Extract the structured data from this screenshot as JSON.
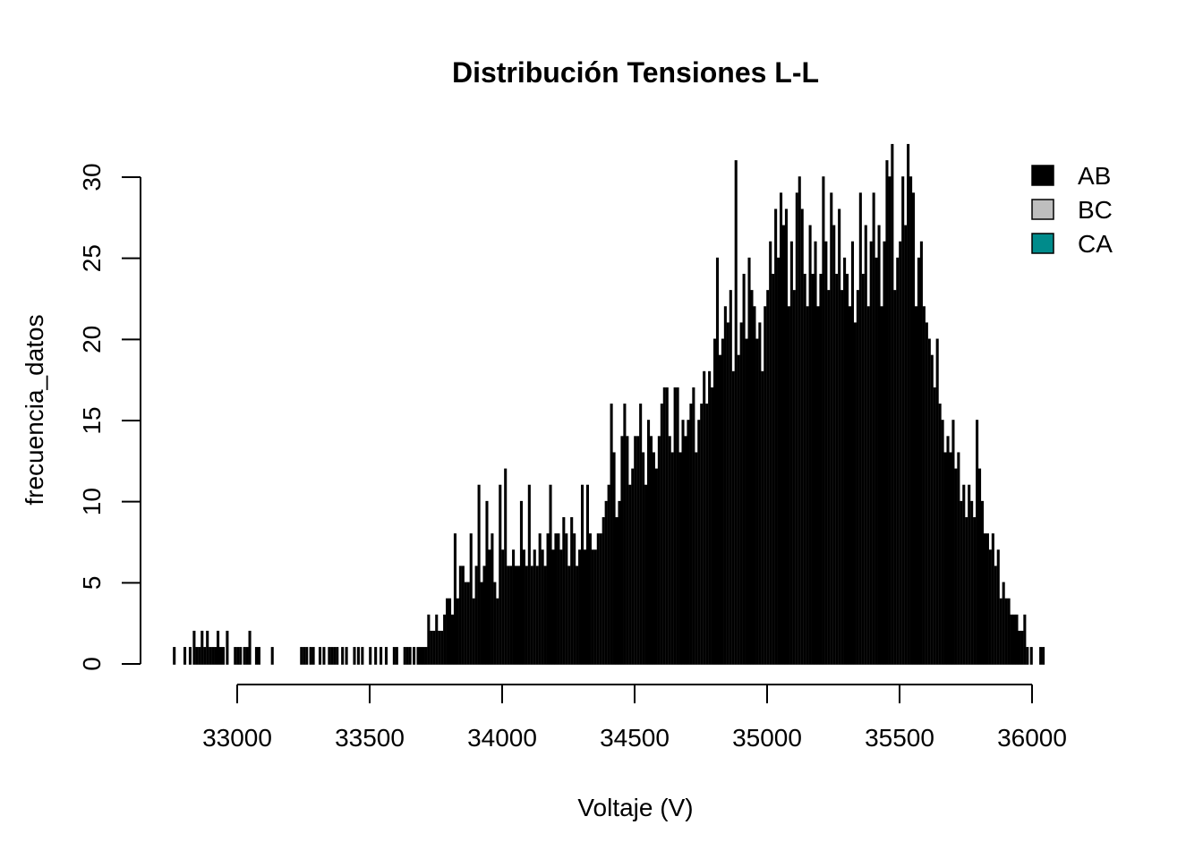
{
  "chart_data": {
    "type": "bar",
    "title": "Distribución Tensiones L-L",
    "xlabel": "Voltaje (V)",
    "ylabel": "frecuencia_datos",
    "xlim": [
      32750,
      36050
    ],
    "ylim": [
      0,
      32
    ],
    "x_ticks": [
      33000,
      33500,
      34000,
      34500,
      35000,
      35500,
      36000
    ],
    "x_tick_labels": [
      "33000",
      "33500",
      "34000",
      "34500",
      "35000",
      "35500",
      "36000"
    ],
    "y_ticks": [
      0,
      5,
      10,
      15,
      20,
      25,
      30
    ],
    "y_tick_labels": [
      "0",
      "5",
      "10",
      "15",
      "20",
      "25",
      "30"
    ],
    "grid": false,
    "legend_position": "top-right",
    "bar_width": 5,
    "series": [
      {
        "name": "AB",
        "color": "#000000",
        "points": [
          [
            32760,
            1
          ],
          [
            32800,
            1
          ],
          [
            32820,
            1
          ],
          [
            32835,
            2
          ],
          [
            32845,
            1
          ],
          [
            32855,
            1
          ],
          [
            32865,
            2
          ],
          [
            32875,
            1
          ],
          [
            32885,
            2
          ],
          [
            32895,
            1
          ],
          [
            32905,
            1
          ],
          [
            32915,
            1
          ],
          [
            32925,
            2
          ],
          [
            32935,
            1
          ],
          [
            32945,
            1
          ],
          [
            32960,
            2
          ],
          [
            32990,
            1
          ],
          [
            33000,
            1
          ],
          [
            33010,
            1
          ],
          [
            33025,
            1
          ],
          [
            33035,
            1
          ],
          [
            33045,
            2
          ],
          [
            33070,
            1
          ],
          [
            33080,
            1
          ],
          [
            33130,
            1
          ],
          [
            33240,
            1
          ],
          [
            33250,
            1
          ],
          [
            33260,
            1
          ],
          [
            33275,
            1
          ],
          [
            33285,
            1
          ],
          [
            33310,
            1
          ],
          [
            33325,
            1
          ],
          [
            33345,
            1
          ],
          [
            33355,
            1
          ],
          [
            33365,
            1
          ],
          [
            33375,
            1
          ],
          [
            33395,
            1
          ],
          [
            33410,
            1
          ],
          [
            33440,
            1
          ],
          [
            33455,
            1
          ],
          [
            33470,
            1
          ],
          [
            33500,
            1
          ],
          [
            33520,
            1
          ],
          [
            33540,
            1
          ],
          [
            33560,
            1
          ],
          [
            33590,
            1
          ],
          [
            33600,
            1
          ],
          [
            33630,
            1
          ],
          [
            33640,
            1
          ],
          [
            33650,
            1
          ],
          [
            33665,
            1
          ],
          [
            33680,
            1
          ],
          [
            33690,
            1
          ],
          [
            33700,
            1
          ],
          [
            33710,
            1
          ],
          [
            33720,
            3
          ],
          [
            33730,
            2
          ],
          [
            33740,
            2
          ],
          [
            33750,
            3
          ],
          [
            33760,
            2
          ],
          [
            33770,
            2
          ],
          [
            33780,
            3
          ],
          [
            33790,
            4
          ],
          [
            33800,
            4
          ],
          [
            33810,
            3
          ],
          [
            33820,
            8
          ],
          [
            33830,
            4
          ],
          [
            33840,
            6
          ],
          [
            33850,
            6
          ],
          [
            33860,
            5
          ],
          [
            33870,
            5
          ],
          [
            33880,
            8
          ],
          [
            33890,
            4
          ],
          [
            33900,
            6
          ],
          [
            33910,
            11
          ],
          [
            33920,
            5
          ],
          [
            33930,
            6
          ],
          [
            33940,
            10
          ],
          [
            33950,
            7
          ],
          [
            33960,
            8
          ],
          [
            33970,
            5
          ],
          [
            33980,
            4
          ],
          [
            33990,
            11
          ],
          [
            34000,
            7
          ],
          [
            34010,
            12
          ],
          [
            34020,
            6
          ],
          [
            34030,
            6
          ],
          [
            34040,
            7
          ],
          [
            34050,
            6
          ],
          [
            34060,
            6
          ],
          [
            34070,
            10
          ],
          [
            34080,
            7
          ],
          [
            34090,
            6
          ],
          [
            34100,
            11
          ],
          [
            34110,
            6
          ],
          [
            34120,
            7
          ],
          [
            34130,
            6
          ],
          [
            34140,
            8
          ],
          [
            34150,
            7
          ],
          [
            34160,
            6
          ],
          [
            34170,
            8
          ],
          [
            34180,
            11
          ],
          [
            34190,
            7
          ],
          [
            34200,
            8
          ],
          [
            34210,
            8
          ],
          [
            34220,
            7
          ],
          [
            34230,
            9
          ],
          [
            34240,
            8
          ],
          [
            34250,
            6
          ],
          [
            34260,
            9
          ],
          [
            34270,
            8
          ],
          [
            34280,
            6
          ],
          [
            34290,
            7
          ],
          [
            34300,
            11
          ],
          [
            34310,
            7
          ],
          [
            34320,
            11
          ],
          [
            34330,
            8
          ],
          [
            34340,
            7
          ],
          [
            34350,
            7
          ],
          [
            34360,
            8
          ],
          [
            34370,
            8
          ],
          [
            34380,
            9
          ],
          [
            34390,
            10
          ],
          [
            34400,
            11
          ],
          [
            34410,
            16
          ],
          [
            34420,
            13
          ],
          [
            34430,
            9
          ],
          [
            34440,
            10
          ],
          [
            34450,
            14
          ],
          [
            34460,
            16
          ],
          [
            34470,
            14
          ],
          [
            34480,
            11
          ],
          [
            34490,
            12
          ],
          [
            34500,
            14
          ],
          [
            34510,
            14
          ],
          [
            34520,
            16
          ],
          [
            34530,
            13
          ],
          [
            34540,
            11
          ],
          [
            34550,
            15
          ],
          [
            34560,
            14
          ],
          [
            34570,
            13
          ],
          [
            34580,
            12
          ],
          [
            34590,
            14
          ],
          [
            34600,
            16
          ],
          [
            34610,
            17
          ],
          [
            34620,
            17
          ],
          [
            34630,
            14
          ],
          [
            34640,
            13
          ],
          [
            34650,
            17
          ],
          [
            34660,
            17
          ],
          [
            34670,
            13
          ],
          [
            34680,
            15
          ],
          [
            34690,
            14
          ],
          [
            34700,
            15
          ],
          [
            34710,
            16
          ],
          [
            34720,
            17
          ],
          [
            34730,
            13
          ],
          [
            34740,
            15
          ],
          [
            34750,
            16
          ],
          [
            34760,
            18
          ],
          [
            34770,
            16
          ],
          [
            34780,
            18
          ],
          [
            34790,
            17
          ],
          [
            34800,
            20
          ],
          [
            34810,
            25
          ],
          [
            34820,
            19
          ],
          [
            34830,
            20
          ],
          [
            34840,
            22
          ],
          [
            34850,
            21
          ],
          [
            34860,
            23
          ],
          [
            34870,
            18
          ],
          [
            34880,
            31
          ],
          [
            34890,
            19
          ],
          [
            34900,
            21
          ],
          [
            34910,
            24
          ],
          [
            34920,
            20
          ],
          [
            34930,
            25
          ],
          [
            34940,
            23
          ],
          [
            34950,
            22
          ],
          [
            34960,
            20
          ],
          [
            34970,
            21
          ],
          [
            34980,
            18
          ],
          [
            34990,
            22
          ],
          [
            35000,
            23
          ],
          [
            35010,
            26
          ],
          [
            35020,
            24
          ],
          [
            35030,
            28
          ],
          [
            35040,
            25
          ],
          [
            35050,
            29
          ],
          [
            35060,
            27
          ],
          [
            35070,
            28
          ],
          [
            35080,
            22
          ],
          [
            35090,
            26
          ],
          [
            35100,
            23
          ],
          [
            35110,
            29
          ],
          [
            35120,
            30
          ],
          [
            35130,
            28
          ],
          [
            35140,
            24
          ],
          [
            35150,
            22
          ],
          [
            35160,
            27
          ],
          [
            35170,
            24
          ],
          [
            35180,
            26
          ],
          [
            35190,
            22
          ],
          [
            35200,
            24
          ],
          [
            35210,
            30
          ],
          [
            35220,
            26
          ],
          [
            35230,
            23
          ],
          [
            35240,
            29
          ],
          [
            35250,
            27
          ],
          [
            35260,
            24
          ],
          [
            35270,
            28
          ],
          [
            35280,
            23
          ],
          [
            35290,
            25
          ],
          [
            35300,
            24
          ],
          [
            35310,
            22
          ],
          [
            35320,
            26
          ],
          [
            35330,
            21
          ],
          [
            35340,
            23
          ],
          [
            35350,
            29
          ],
          [
            35360,
            24
          ],
          [
            35370,
            27
          ],
          [
            35380,
            22
          ],
          [
            35390,
            26
          ],
          [
            35400,
            29
          ],
          [
            35410,
            25
          ],
          [
            35420,
            27
          ],
          [
            35430,
            22
          ],
          [
            35440,
            26
          ],
          [
            35450,
            31
          ],
          [
            35460,
            30
          ],
          [
            35470,
            32
          ],
          [
            35480,
            23
          ],
          [
            35490,
            25
          ],
          [
            35500,
            26
          ],
          [
            35510,
            30
          ],
          [
            35520,
            27
          ],
          [
            35530,
            32
          ],
          [
            35540,
            30
          ],
          [
            35550,
            29
          ],
          [
            35560,
            22
          ],
          [
            35570,
            25
          ],
          [
            35580,
            26
          ],
          [
            35590,
            22
          ],
          [
            35600,
            21
          ],
          [
            35610,
            20
          ],
          [
            35620,
            19
          ],
          [
            35630,
            17
          ],
          [
            35640,
            20
          ],
          [
            35650,
            16
          ],
          [
            35660,
            15
          ],
          [
            35670,
            13
          ],
          [
            35680,
            14
          ],
          [
            35690,
            13
          ],
          [
            35700,
            15
          ],
          [
            35710,
            12
          ],
          [
            35720,
            13
          ],
          [
            35730,
            10
          ],
          [
            35740,
            11
          ],
          [
            35750,
            9
          ],
          [
            35760,
            11
          ],
          [
            35770,
            10
          ],
          [
            35780,
            9
          ],
          [
            35790,
            15
          ],
          [
            35800,
            12
          ],
          [
            35810,
            10
          ],
          [
            35820,
            8
          ],
          [
            35830,
            8
          ],
          [
            35840,
            7
          ],
          [
            35850,
            8
          ],
          [
            35860,
            6
          ],
          [
            35870,
            7
          ],
          [
            35880,
            4
          ],
          [
            35890,
            5
          ],
          [
            35900,
            4
          ],
          [
            35910,
            4
          ],
          [
            35920,
            3
          ],
          [
            35930,
            3
          ],
          [
            35940,
            3
          ],
          [
            35950,
            2
          ],
          [
            35960,
            2
          ],
          [
            35970,
            3
          ],
          [
            35980,
            1
          ],
          [
            35995,
            1
          ],
          [
            36030,
            1
          ],
          [
            36040,
            1
          ]
        ]
      },
      {
        "name": "BC",
        "color": "#bebebe",
        "points": []
      },
      {
        "name": "CA",
        "color": "#008b8b",
        "points": []
      }
    ]
  }
}
